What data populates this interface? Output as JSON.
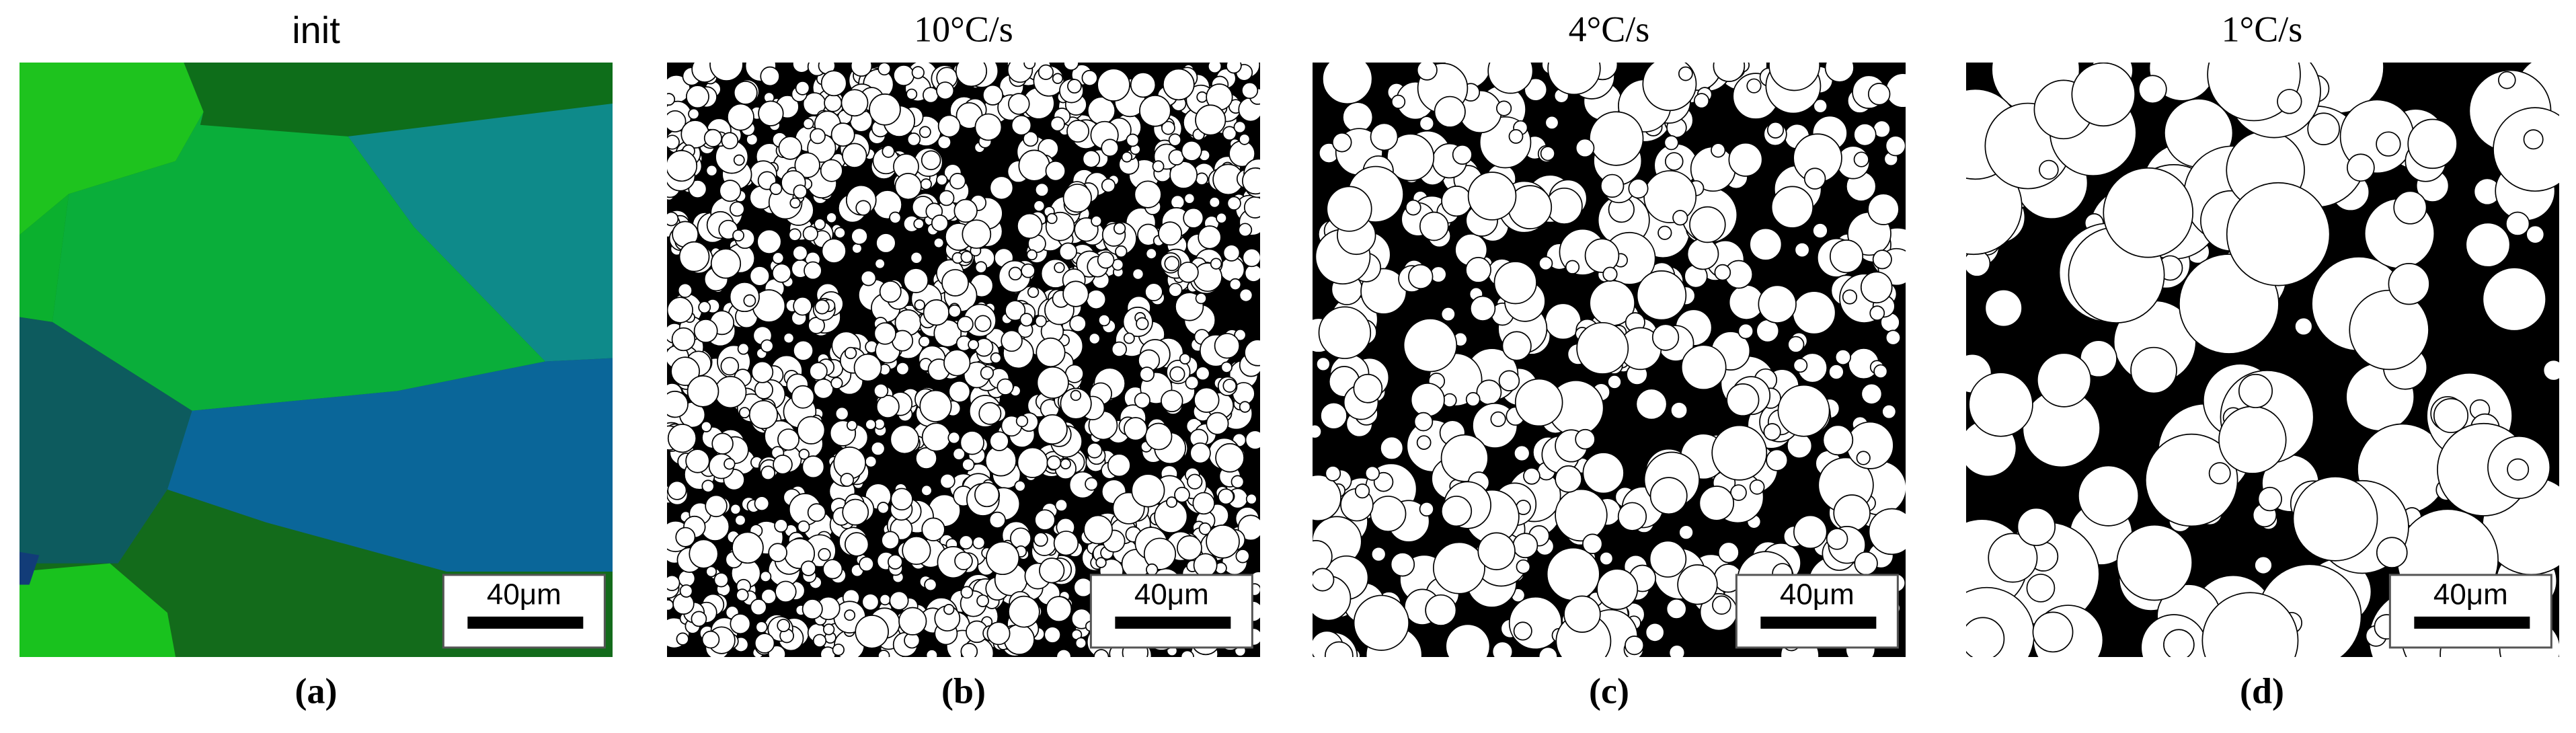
{
  "panels": [
    {
      "title": "init",
      "scale_label": "40μm",
      "caption": "(a)"
    },
    {
      "title": "10°C/s",
      "scale_label": "40μm",
      "caption": "(b)"
    },
    {
      "title": "4°C/s",
      "scale_label": "40μm",
      "caption": "(c)"
    },
    {
      "title": "1°C/s",
      "scale_label": "40μm",
      "caption": "(d)"
    }
  ]
}
